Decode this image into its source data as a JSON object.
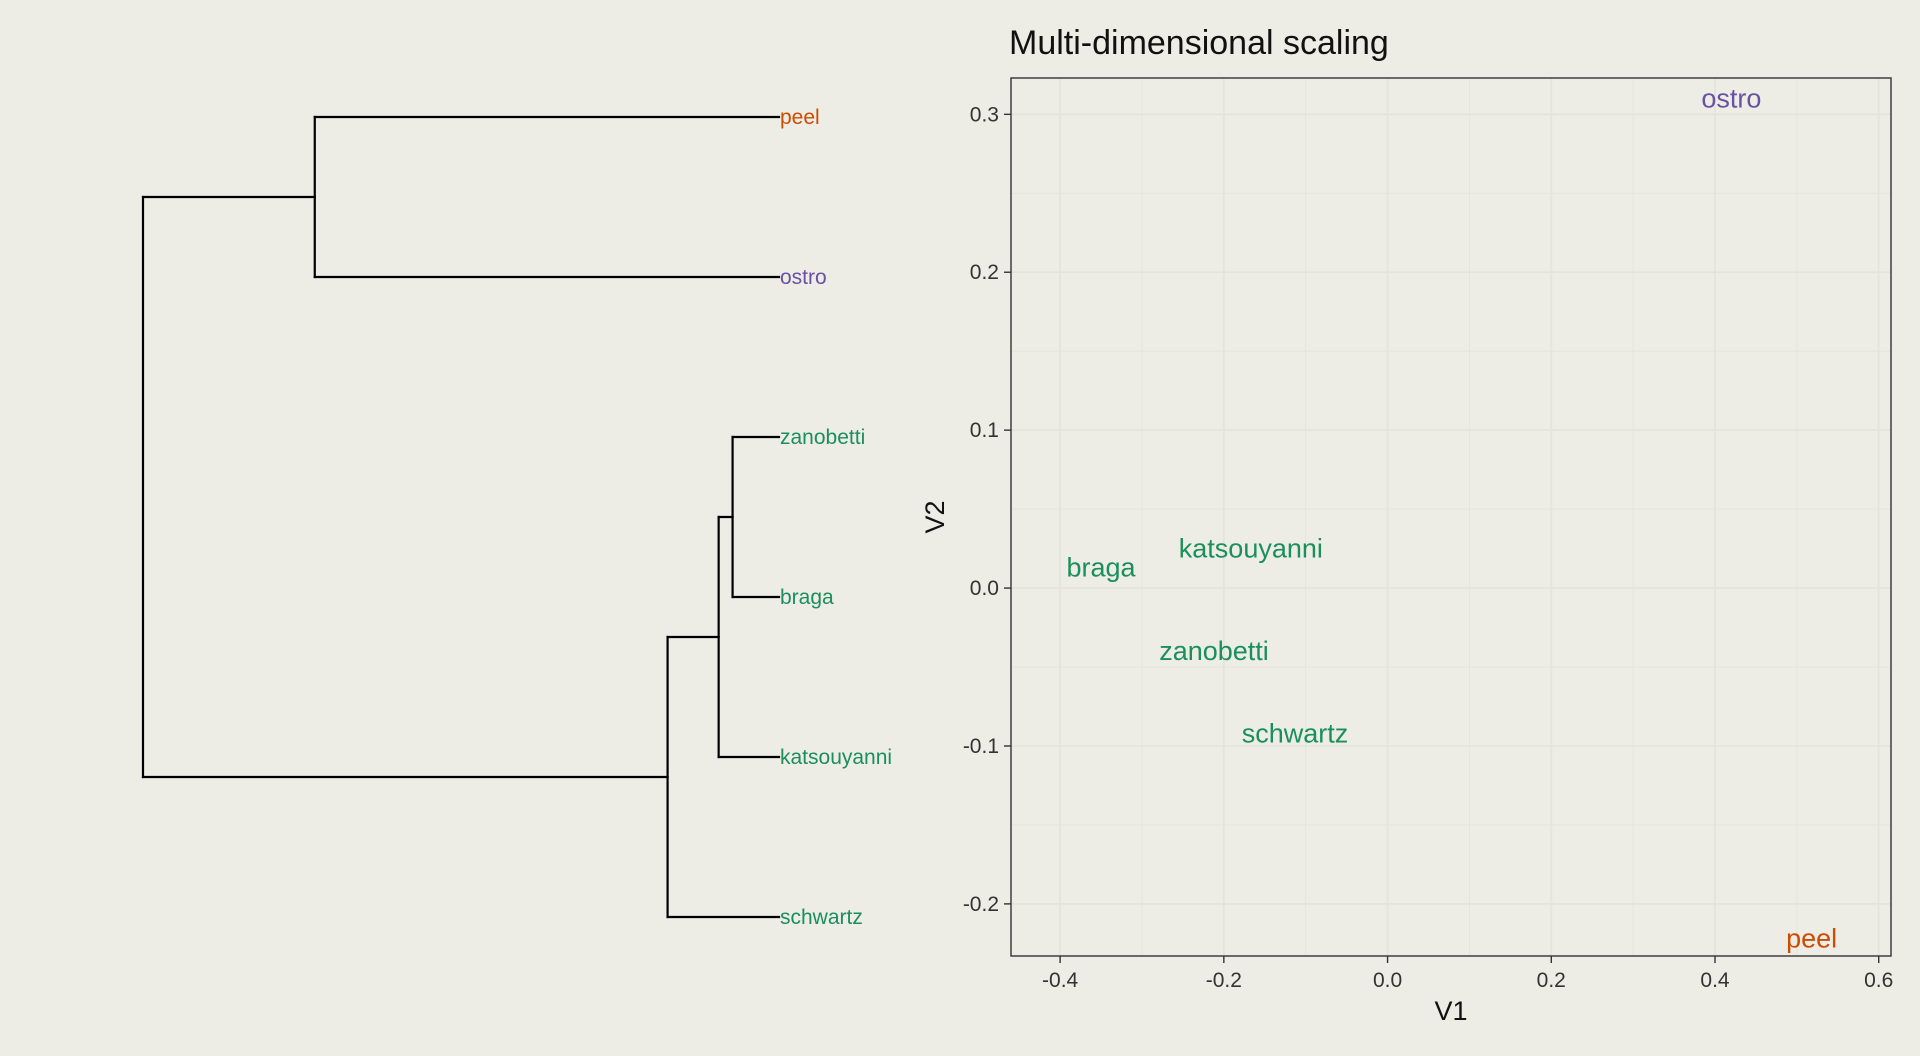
{
  "dendrogram": {
    "leaves": [
      {
        "name": "peel",
        "color": "#CC4C02"
      },
      {
        "name": "ostro",
        "color": "#6A51A3"
      },
      {
        "name": "zanobetti",
        "color": "#1B8F5A"
      },
      {
        "name": "braga",
        "color": "#1B8F5A"
      },
      {
        "name": "katsouyanni",
        "color": "#1B8F5A"
      },
      {
        "name": "schwartz",
        "color": "#1B8F5A"
      }
    ],
    "merges": [
      {
        "left": "zanobetti",
        "right": "braga",
        "height": 0.1
      },
      {
        "left": "zanobetti|braga",
        "right": "katsouyanni",
        "height": 0.13
      },
      {
        "left": "zanobetti|braga|katsouyanni",
        "right": "schwartz",
        "height": 0.24
      },
      {
        "left": "peel",
        "right": "ostro",
        "height": 1.0
      },
      {
        "left": "peel|ostro",
        "right": "zanobetti|braga|katsouyanni|schwartz",
        "height": 1.37
      }
    ]
  },
  "chart_data": {
    "type": "scatter",
    "title": "Multi-dimensional scaling",
    "xlabel": "V1",
    "ylabel": "V2",
    "xlim": [
      -0.46,
      0.615
    ],
    "ylim": [
      -0.233,
      0.323
    ],
    "xticks": [
      "-0.4",
      "-0.2",
      "0.0",
      "0.2",
      "0.4",
      "0.6"
    ],
    "yticks": [
      "-0.2",
      "-0.1",
      "0.0",
      "0.1",
      "0.2",
      "0.3"
    ],
    "grid": true,
    "points": [
      {
        "label": "ostro",
        "x": 0.42,
        "y": 0.31,
        "color": "#6A51A3"
      },
      {
        "label": "braga",
        "x": -0.35,
        "y": 0.013,
        "color": "#1B8F5A"
      },
      {
        "label": "katsouyanni",
        "x": -0.167,
        "y": 0.025,
        "color": "#1B8F5A"
      },
      {
        "label": "zanobetti",
        "x": -0.212,
        "y": -0.04,
        "color": "#1B8F5A"
      },
      {
        "label": "schwartz",
        "x": -0.113,
        "y": -0.092,
        "color": "#1B8F5A"
      },
      {
        "label": "peel",
        "x": 0.518,
        "y": -0.222,
        "color": "#CC4C02"
      }
    ]
  }
}
